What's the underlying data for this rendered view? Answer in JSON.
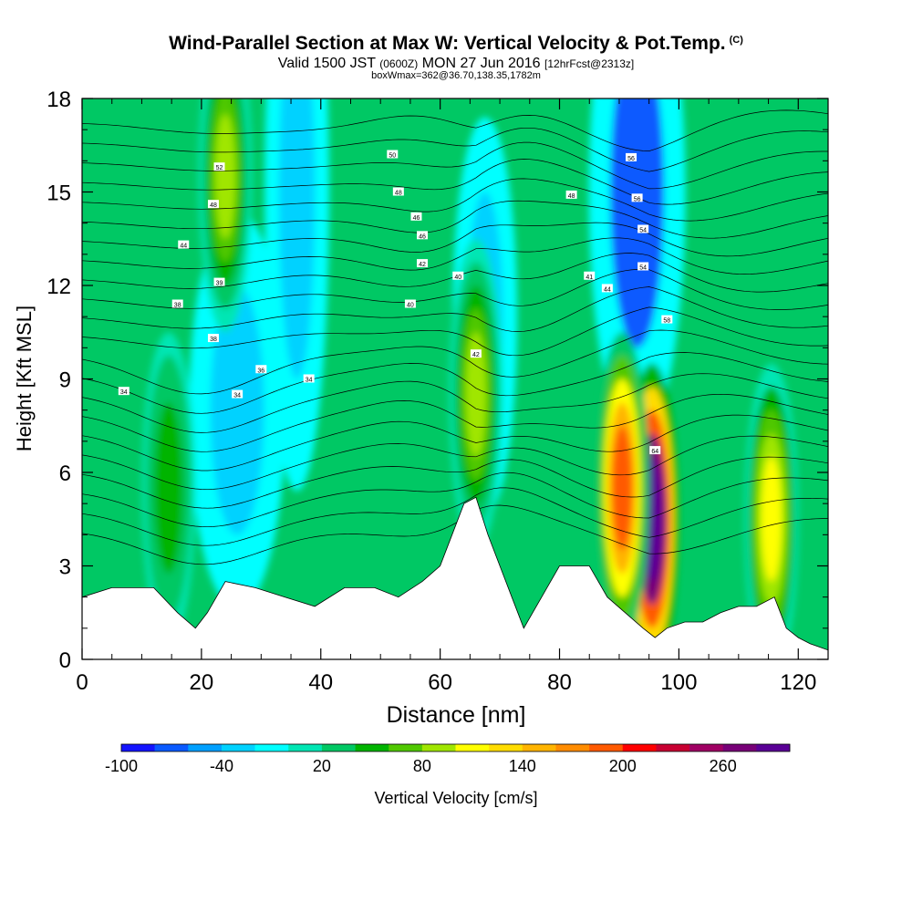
{
  "chart_data": {
    "type": "heatmap",
    "title": "Wind-Parallel Section at Max W: Vertical Velocity & Pot.Temp.",
    "title_mark": "(C)",
    "subtitle_valid": "Valid 1500 JST",
    "subtitle_utc": "(0600Z)",
    "subtitle_date": "MON 27 Jun 2016",
    "subtitle_fcst": "[12hrFcst@2313z]",
    "box_info": "boxWmax=362@36.70,138.35,1782m",
    "xlabel": "Distance [nm]",
    "ylabel": "Height [Kft MSL]",
    "xlim": [
      0,
      125
    ],
    "ylim": [
      0,
      18
    ],
    "x_ticks": [
      "0",
      "20",
      "40",
      "60",
      "80",
      "100",
      "120"
    ],
    "y_ticks": [
      "0",
      "3",
      "6",
      "9",
      "12",
      "15",
      "18"
    ],
    "colorbar": {
      "label": "Vertical Velocity [cm/s]",
      "tick_labels": [
        "-100",
        "-40",
        "20",
        "80",
        "140",
        "200",
        "260"
      ],
      "colors": [
        "#1414ff",
        "#0a5aff",
        "#00a0ff",
        "#00d2ff",
        "#00ffff",
        "#00e6b4",
        "#00c864",
        "#00b400",
        "#50c800",
        "#a0e600",
        "#ffff00",
        "#ffdc00",
        "#ffb400",
        "#ff8c00",
        "#ff5a00",
        "#ff0000",
        "#c80032",
        "#a00064",
        "#780078",
        "#5a0096"
      ]
    },
    "terrain": [
      [
        0,
        2
      ],
      [
        5,
        2.3
      ],
      [
        12,
        2.3
      ],
      [
        16,
        1.5
      ],
      [
        19,
        1
      ],
      [
        21,
        1.5
      ],
      [
        24,
        2.5
      ],
      [
        29,
        2.3
      ],
      [
        34,
        2
      ],
      [
        39,
        1.7
      ],
      [
        44,
        2.3
      ],
      [
        49,
        2.3
      ],
      [
        53,
        2
      ],
      [
        57,
        2.5
      ],
      [
        60,
        3
      ],
      [
        62,
        4
      ],
      [
        64,
        5
      ],
      [
        66,
        5.2
      ],
      [
        68,
        4
      ],
      [
        70,
        3
      ],
      [
        72,
        2
      ],
      [
        74,
        1
      ],
      [
        77,
        2
      ],
      [
        80,
        3
      ],
      [
        85,
        3
      ],
      [
        88,
        2
      ],
      [
        91,
        1.5
      ],
      [
        94,
        1
      ],
      [
        96,
        0.7
      ],
      [
        98,
        1
      ],
      [
        101,
        1.2
      ],
      [
        104,
        1.2
      ],
      [
        107,
        1.5
      ],
      [
        110,
        1.7
      ],
      [
        113,
        1.7
      ],
      [
        116,
        2
      ],
      [
        118,
        1
      ],
      [
        120,
        0.7
      ],
      [
        122,
        0.5
      ],
      [
        125,
        0.3
      ]
    ],
    "updrafts": [
      {
        "x": 95.5,
        "y": 4.5,
        "max": 362
      },
      {
        "x": 90.5,
        "y": 5.5,
        "max": 210
      },
      {
        "x": 24,
        "y": 15.5,
        "max": 90
      },
      {
        "x": 66,
        "y": 8.5,
        "max": 100
      },
      {
        "x": 115.5,
        "y": 4.5,
        "max": 120
      },
      {
        "x": 14.5,
        "y": 5.5,
        "max": 60
      }
    ],
    "downdrafts": [
      {
        "x": 67.5,
        "y": 11,
        "min": -40
      },
      {
        "x": 93,
        "y": 15,
        "min": -70
      },
      {
        "x": 36,
        "y": 15,
        "min": -40
      },
      {
        "x": 26,
        "y": 8,
        "min": -40
      }
    ],
    "isentrope_labels": [
      "34",
      "34",
      "34",
      "36",
      "38",
      "38",
      "39",
      "40",
      "40",
      "41",
      "42",
      "42",
      "44",
      "44",
      "46",
      "46",
      "48",
      "48",
      "48",
      "50",
      "52",
      "54",
      "54",
      "56",
      "56",
      "58",
      "64"
    ]
  }
}
